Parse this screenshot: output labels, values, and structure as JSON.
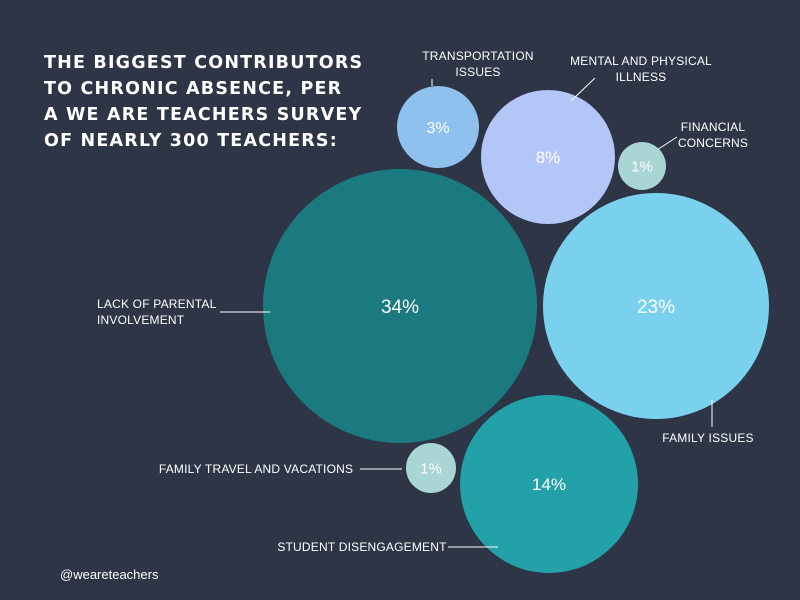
{
  "title_lines": [
    "THE BIGGEST CONTRIBUTORS",
    "TO CHRONIC ABSENCE, PER",
    "A WE ARE TEACHERS SURVEY",
    "OF NEARLY 300 TEACHERS:"
  ],
  "credit": "@weareteachers",
  "colors": {
    "background": "#2e3546",
    "transportation": "#8fc1ee",
    "mental_physical": "#b4c6f8",
    "financial": "#a9d5d5",
    "parental": "#1b7a7f",
    "family_issues": "#79d1ee",
    "travel": "#a9d5d5",
    "disengagement": "#22a1a9"
  },
  "chart_data": {
    "type": "bubble",
    "unit": "%",
    "series": [
      {
        "key": "parental",
        "label_lines": [
          "LACK OF PARENTAL",
          "INVOLVEMENT"
        ],
        "value": 34
      },
      {
        "key": "family_issues",
        "label_lines": [
          "FAMILY ISSUES"
        ],
        "value": 23
      },
      {
        "key": "disengagement",
        "label_lines": [
          "STUDENT DISENGAGEMENT"
        ],
        "value": 14
      },
      {
        "key": "mental_physical",
        "label_lines": [
          "MENTAL AND PHYSICAL",
          "ILLNESS"
        ],
        "value": 8
      },
      {
        "key": "transportation",
        "label_lines": [
          "TRANSPORTATION",
          "ISSUES"
        ],
        "value": 3
      },
      {
        "key": "financial",
        "label_lines": [
          "FINANCIAL",
          "CONCERNS"
        ],
        "value": 1
      },
      {
        "key": "travel",
        "label_lines": [
          "FAMILY TRAVEL AND VACATIONS"
        ],
        "value": 1
      }
    ]
  }
}
